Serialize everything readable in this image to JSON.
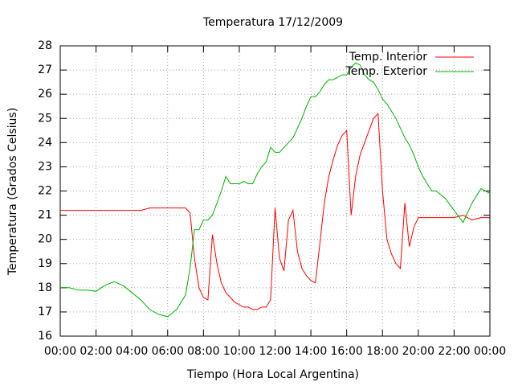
{
  "chart_data": {
    "type": "line",
    "title": "Temperatura 17/12/2009",
    "x_label": "Tiempo (Hora Local Argentina)",
    "y_label": "Temperatura (Grados Celsius)",
    "x": [
      0,
      0.5,
      1,
      1.5,
      2,
      2.5,
      3,
      3.5,
      4,
      4.5,
      5,
      5.5,
      6,
      6.5,
      7,
      7.25,
      7.5,
      7.75,
      8,
      8.25,
      8.5,
      8.75,
      9,
      9.25,
      9.5,
      9.75,
      10,
      10.25,
      10.5,
      10.75,
      11,
      11.25,
      11.5,
      11.75,
      12,
      12.25,
      12.5,
      12.75,
      13,
      13.25,
      13.5,
      13.75,
      14,
      14.25,
      14.5,
      14.75,
      15,
      15.25,
      15.5,
      15.75,
      16,
      16.25,
      16.5,
      16.75,
      17,
      17.25,
      17.5,
      17.75,
      18,
      18.25,
      18.5,
      18.75,
      19,
      19.25,
      19.5,
      19.75,
      20,
      20.25,
      20.5,
      20.75,
      21,
      21.5,
      22,
      22.5,
      23,
      23.5,
      24
    ],
    "series": [
      {
        "name": "Temp. Interior",
        "color": "#ff0000",
        "values": [
          21.2,
          21.2,
          21.2,
          21.2,
          21.2,
          21.2,
          21.2,
          21.2,
          21.2,
          21.2,
          21.3,
          21.3,
          21.3,
          21.3,
          21.3,
          21.1,
          19.2,
          18.0,
          17.6,
          17.5,
          20.2,
          19.0,
          18.2,
          17.8,
          17.6,
          17.4,
          17.3,
          17.2,
          17.2,
          17.1,
          17.1,
          17.2,
          17.2,
          17.5,
          21.3,
          19.2,
          18.7,
          20.8,
          21.2,
          19.5,
          18.8,
          18.5,
          18.3,
          18.2,
          19.8,
          21.5,
          22.6,
          23.3,
          23.9,
          24.3,
          24.5,
          21.0,
          22.6,
          23.5,
          24.0,
          24.5,
          25.0,
          25.2,
          22.0,
          20.0,
          19.4,
          19.0,
          18.8,
          21.5,
          19.7,
          20.5,
          20.9,
          20.9,
          20.9,
          20.9,
          20.9,
          20.9,
          20.9,
          21.0,
          20.8,
          20.9,
          20.9
        ]
      },
      {
        "name": "Temp. Exterior",
        "color": "#00b000",
        "values": [
          18.0,
          18.0,
          17.9,
          17.9,
          17.85,
          18.1,
          18.25,
          18.1,
          17.8,
          17.5,
          17.1,
          16.9,
          16.8,
          17.1,
          17.7,
          18.8,
          20.4,
          20.4,
          20.8,
          20.8,
          21.0,
          21.5,
          22.0,
          22.6,
          22.3,
          22.3,
          22.3,
          22.4,
          22.3,
          22.3,
          22.7,
          23.0,
          23.2,
          23.8,
          23.6,
          23.6,
          23.8,
          24.0,
          24.2,
          24.6,
          25.0,
          25.5,
          25.9,
          25.9,
          26.1,
          26.4,
          26.6,
          26.6,
          26.7,
          26.8,
          26.8,
          27.1,
          27.3,
          27.2,
          26.8,
          26.6,
          26.5,
          26.2,
          25.8,
          25.6,
          25.3,
          25.0,
          24.6,
          24.2,
          23.9,
          23.5,
          23.0,
          22.6,
          22.3,
          22.0,
          22.0,
          21.7,
          21.2,
          20.7,
          21.5,
          22.1,
          21.9
        ]
      }
    ],
    "xlim": [
      0,
      24
    ],
    "xticks": [
      {
        "value": 0,
        "label": "00:00"
      },
      {
        "value": 2,
        "label": "02:00"
      },
      {
        "value": 4,
        "label": "04:00"
      },
      {
        "value": 6,
        "label": "06:00"
      },
      {
        "value": 8,
        "label": "08:00"
      },
      {
        "value": 10,
        "label": "10:00"
      },
      {
        "value": 12,
        "label": "12:00"
      },
      {
        "value": 14,
        "label": "14:00"
      },
      {
        "value": 16,
        "label": "16:00"
      },
      {
        "value": 18,
        "label": "18:00"
      },
      {
        "value": 20,
        "label": "20:00"
      },
      {
        "value": 22,
        "label": "22:00"
      },
      {
        "value": 24,
        "label": "00:00"
      }
    ],
    "ylim": [
      16,
      28
    ],
    "yticks": [
      16,
      17,
      18,
      19,
      20,
      21,
      22,
      23,
      24,
      25,
      26,
      27,
      28
    ],
    "grid": true,
    "legend": "top-right"
  }
}
